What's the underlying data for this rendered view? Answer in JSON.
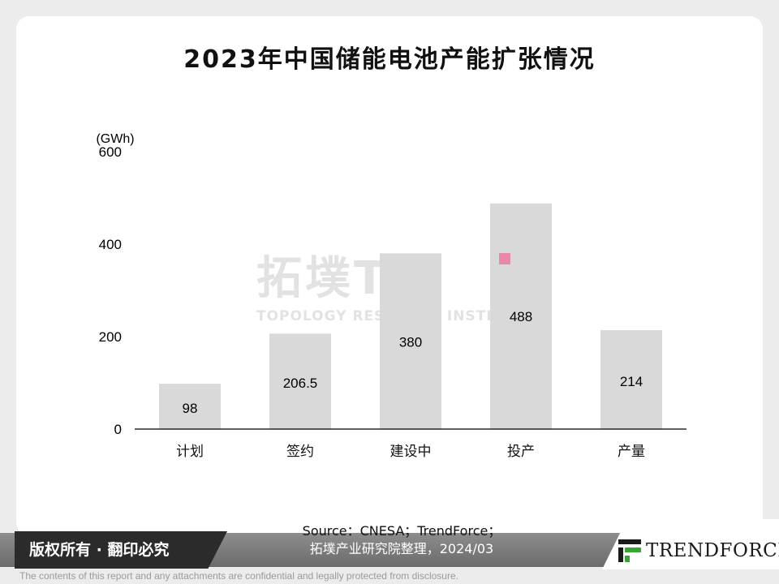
{
  "title": "2023年中国储能电池产能扩张情况",
  "watermark": {
    "main": "拓墣TRI",
    "sub": "TOPOLOGY RESEARCH INSTITUTE"
  },
  "source": {
    "line1": "Source：CNESA；TrendForce；",
    "line2": "拓墣产业研究院整理，2024/03"
  },
  "footer": {
    "copyright": "版权所有 · 翻印必究",
    "logo": "TRENDFORCE",
    "disclaimer": "The contents of this report and any attachments are confidential and legally protected from disclosure."
  },
  "colors": {
    "bar": "#d9d9d9",
    "marker": "#e88aa6",
    "axis": "#000000"
  },
  "chart_data": {
    "type": "bar",
    "unit": "(GWh)",
    "categories": [
      "计划",
      "签约",
      "建设中",
      "投产",
      "产量"
    ],
    "values": [
      98,
      206.5,
      380,
      488,
      214
    ],
    "value_labels": [
      "98",
      "206.5",
      "380",
      "488",
      "214"
    ],
    "yticks": [
      0,
      200,
      400,
      600
    ],
    "ylim": [
      0,
      600
    ],
    "grid": false
  }
}
